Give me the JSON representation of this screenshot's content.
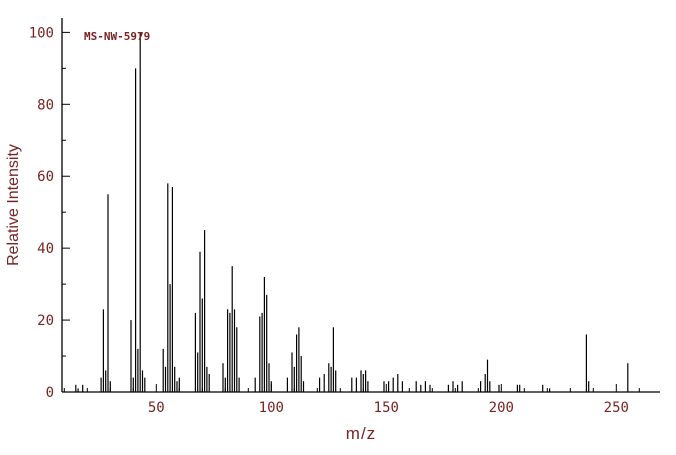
{
  "colors": {
    "peak_line": "#000000",
    "axis_line": "#000000",
    "text": "#7a2323",
    "background": "#ffffff"
  },
  "chart_data": {
    "type": "bar",
    "title": "MS-NW-5979",
    "xlabel": "m/z",
    "ylabel": "Relative Intensity",
    "xlim": [
      9,
      269
    ],
    "ylim": [
      0,
      104
    ],
    "x_ticks": [
      50,
      100,
      150,
      200,
      250
    ],
    "y_ticks": [
      0,
      20,
      40,
      60,
      80,
      100
    ],
    "x_minor_step": 10,
    "y_minor_step": 10,
    "grid": false,
    "legend": false,
    "peaks": [
      [
        15,
        2
      ],
      [
        16,
        1
      ],
      [
        18,
        2
      ],
      [
        26,
        4
      ],
      [
        27,
        23
      ],
      [
        28,
        6
      ],
      [
        29,
        55
      ],
      [
        30,
        3
      ],
      [
        39,
        20
      ],
      [
        40,
        4
      ],
      [
        41,
        90
      ],
      [
        42,
        12
      ],
      [
        43,
        100
      ],
      [
        44,
        6
      ],
      [
        45,
        4
      ],
      [
        53,
        12
      ],
      [
        54,
        7
      ],
      [
        55,
        58
      ],
      [
        56,
        30
      ],
      [
        57,
        57
      ],
      [
        58,
        7
      ],
      [
        59,
        3
      ],
      [
        60,
        4
      ],
      [
        67,
        22
      ],
      [
        68,
        11
      ],
      [
        69,
        39
      ],
      [
        70,
        26
      ],
      [
        71,
        45
      ],
      [
        72,
        7
      ],
      [
        73,
        5
      ],
      [
        79,
        8
      ],
      [
        80,
        4
      ],
      [
        81,
        23
      ],
      [
        82,
        22
      ],
      [
        83,
        35
      ],
      [
        84,
        23
      ],
      [
        85,
        18
      ],
      [
        86,
        4
      ],
      [
        93,
        4
      ],
      [
        95,
        21
      ],
      [
        96,
        22
      ],
      [
        97,
        32
      ],
      [
        98,
        27
      ],
      [
        99,
        8
      ],
      [
        100,
        3
      ],
      [
        107,
        4
      ],
      [
        109,
        11
      ],
      [
        110,
        7
      ],
      [
        111,
        16
      ],
      [
        112,
        18
      ],
      [
        113,
        10
      ],
      [
        114,
        3
      ],
      [
        121,
        4
      ],
      [
        123,
        5
      ],
      [
        125,
        8
      ],
      [
        126,
        7
      ],
      [
        127,
        18
      ],
      [
        128,
        6
      ],
      [
        135,
        4
      ],
      [
        137,
        4
      ],
      [
        139,
        6
      ],
      [
        140,
        5
      ],
      [
        141,
        6
      ],
      [
        142,
        3
      ],
      [
        149,
        3
      ],
      [
        151,
        3
      ],
      [
        153,
        4
      ],
      [
        155,
        5
      ],
      [
        157,
        3
      ],
      [
        163,
        3
      ],
      [
        165,
        2
      ],
      [
        167,
        3
      ],
      [
        169,
        2
      ],
      [
        177,
        2
      ],
      [
        179,
        3
      ],
      [
        181,
        2
      ],
      [
        183,
        3
      ],
      [
        191,
        3
      ],
      [
        193,
        5
      ],
      [
        194,
        9
      ],
      [
        195,
        3
      ],
      [
        199,
        2
      ],
      [
        207,
        2
      ],
      [
        208,
        2
      ],
      [
        218,
        2
      ],
      [
        221,
        1
      ],
      [
        237,
        16
      ],
      [
        238,
        3
      ],
      [
        255,
        8
      ]
    ]
  }
}
